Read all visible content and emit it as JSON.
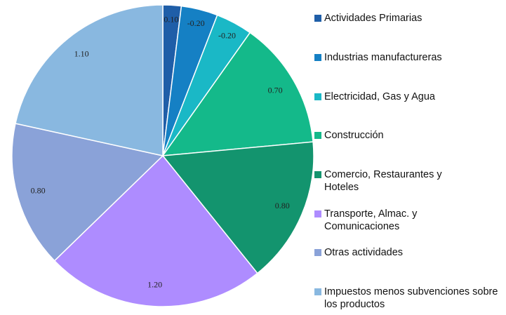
{
  "chart_data": {
    "type": "pie",
    "categories": [
      "Actividades Primarias",
      "Industrias manufactureras",
      "Electricidad, Gas y Agua",
      "Construcción",
      "Comercio, Restaurantes  y Hoteles",
      "Transporte, Almac. y Comunicaciones",
      "Otras actividades",
      "Impuestos menos subvenciones sobre los productos"
    ],
    "values": [
      0.1,
      -0.2,
      -0.2,
      0.7,
      0.8,
      1.2,
      0.8,
      1.1
    ],
    "value_labels": [
      "0.10",
      "-0.20",
      "-0.20",
      "0.70",
      "0.80",
      "1.20",
      "0.80",
      "1.10"
    ],
    "colors": [
      "#1f5ea8",
      "#1580c4",
      "#1ab8c6",
      "#14b98a",
      "#13946e",
      "#ae8cff",
      "#8aa2d8",
      "#89b8e0"
    ]
  }
}
